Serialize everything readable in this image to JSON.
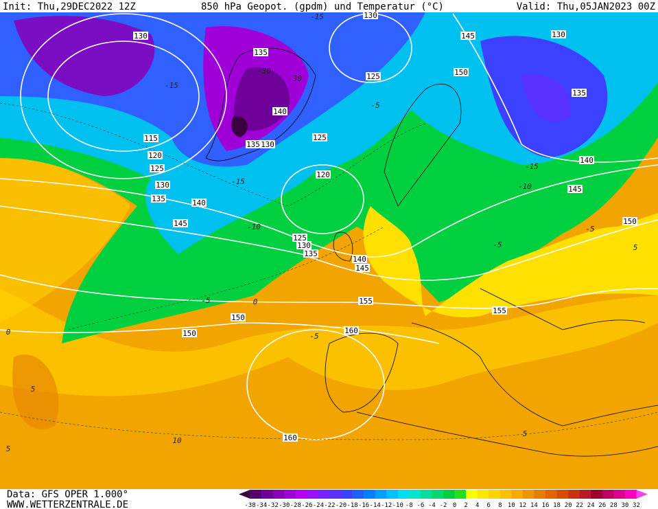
{
  "header": {
    "init": "Init: Thu,29DEC2022 12Z",
    "title": "850 hPa Geopot. (gpdm) und Temperatur (°C)",
    "valid": "Valid: Thu,05JAN2023 00Z"
  },
  "footer": {
    "source": "Data: GFS OPER 1.000°",
    "site": "WWW.WETTERZENTRALE.DE"
  },
  "legend": {
    "labels": [
      -38,
      -34,
      -32,
      -30,
      -28,
      -26,
      -24,
      -22,
      -20,
      -18,
      -16,
      -14,
      -12,
      -10,
      -8,
      -6,
      -4,
      -2,
      0,
      2,
      4,
      6,
      8,
      10,
      12,
      14,
      16,
      18,
      20,
      22,
      24,
      26,
      28,
      30,
      32
    ],
    "colors": [
      "#3a0040",
      "#55006e",
      "#70009a",
      "#8800b8",
      "#a000d8",
      "#b800f0",
      "#9a10ff",
      "#7820ff",
      "#5a30ff",
      "#3c40ff",
      "#2060ff",
      "#0080ff",
      "#00a0ff",
      "#00c0ff",
      "#00dcf0",
      "#00e8c8",
      "#00e09a",
      "#00d870",
      "#00d040",
      "#20e020",
      "#ffff00",
      "#ffe800",
      "#ffd400",
      "#ffc000",
      "#f8aa00",
      "#f09400",
      "#e87c00",
      "#e06400",
      "#d84c00",
      "#cc3010",
      "#b81828",
      "#a00030",
      "#c00060",
      "#e00090",
      "#ff00c0",
      "#ff40e8"
    ]
  },
  "map": {
    "height_labels": [
      130,
      145,
      130,
      130,
      135,
      125,
      150,
      135,
      140,
      135,
      130,
      125,
      115,
      120,
      125,
      130,
      135,
      140,
      145,
      120,
      140,
      145,
      150,
      125,
      130,
      135,
      140,
      145,
      155,
      155,
      150,
      150,
      160,
      160
    ],
    "temperature_labels": [
      -15,
      -30,
      -30,
      -15,
      -5,
      -15,
      -10,
      -15,
      -10,
      -5,
      -5,
      0,
      -5,
      0,
      5,
      10,
      5,
      5,
      5,
      -5
    ]
  }
}
